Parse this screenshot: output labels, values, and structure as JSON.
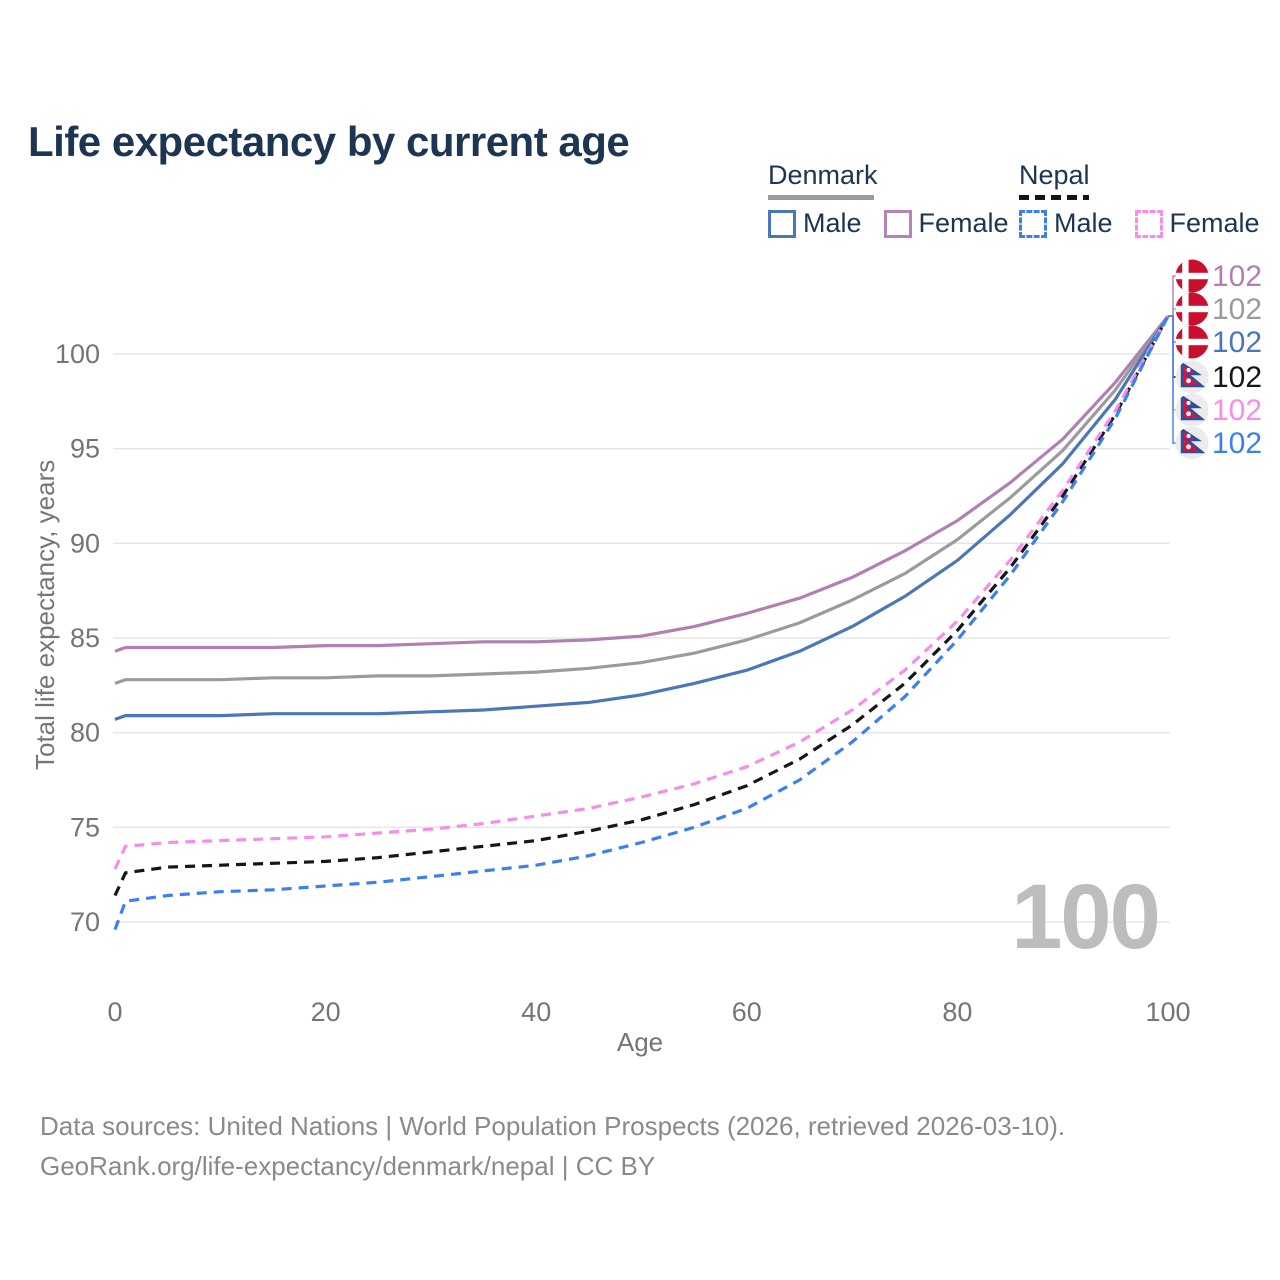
{
  "page": {
    "title": "Life expectancy by current age",
    "background": "#ffffff"
  },
  "legend": {
    "groups": [
      {
        "id": "denmark",
        "label": "Denmark",
        "line_style": "solid",
        "line_color": "#9b9b9b",
        "items": [
          {
            "id": "denmark-male",
            "label": "Male",
            "color": "#4a77b9",
            "dashed": false
          },
          {
            "id": "denmark-female",
            "label": "Female",
            "color": "#b583b5",
            "dashed": false
          }
        ]
      },
      {
        "id": "nepal",
        "label": "Nepal",
        "line_style": "dashed",
        "line_color": "#161616",
        "items": [
          {
            "id": "nepal-male",
            "label": "Male",
            "color": "#3b80f0",
            "dashed": true
          },
          {
            "id": "nepal-female",
            "label": "Female",
            "color": "#fa8ce8",
            "dashed": true
          }
        ]
      }
    ]
  },
  "chart_data": {
    "type": "line",
    "title": "Life expectancy by current age",
    "xlabel": "Age",
    "ylabel": "Total life expectancy, years",
    "xlim": [
      0,
      100
    ],
    "ylim": [
      69,
      103
    ],
    "x_ticks": [
      0,
      20,
      40,
      60,
      80,
      100
    ],
    "y_ticks": [
      70,
      75,
      80,
      85,
      90,
      95,
      100
    ],
    "grid": "horizontal",
    "legend_position": "top-right",
    "watermark": "100",
    "x": [
      0,
      1,
      5,
      10,
      15,
      20,
      25,
      30,
      35,
      40,
      45,
      50,
      55,
      60,
      65,
      70,
      75,
      80,
      85,
      90,
      95,
      100
    ],
    "series": [
      {
        "id": "denmark-female",
        "name": "Denmark Female",
        "country": "Denmark",
        "sex": "female",
        "color": "#b27fb2",
        "dashed": false,
        "end_label": "102",
        "values": [
          84.3,
          84.5,
          84.5,
          84.5,
          84.5,
          84.6,
          84.6,
          84.7,
          84.8,
          84.8,
          84.9,
          85.1,
          85.6,
          86.3,
          87.1,
          88.2,
          89.6,
          91.2,
          93.2,
          95.5,
          98.5,
          102
        ]
      },
      {
        "id": "denmark-all",
        "name": "Denmark",
        "country": "Denmark",
        "sex": "all",
        "color": "#9b9b9b",
        "dashed": false,
        "end_label": "102",
        "values": [
          82.6,
          82.8,
          82.8,
          82.8,
          82.9,
          82.9,
          83.0,
          83.0,
          83.1,
          83.2,
          83.4,
          83.7,
          84.2,
          84.9,
          85.8,
          87.0,
          88.4,
          90.2,
          92.4,
          94.9,
          98.1,
          102
        ]
      },
      {
        "id": "denmark-male",
        "name": "Denmark Male",
        "country": "Denmark",
        "sex": "male",
        "color": "#4a77b9",
        "dashed": false,
        "end_label": "102",
        "values": [
          80.7,
          80.9,
          80.9,
          80.9,
          81.0,
          81.0,
          81.0,
          81.1,
          81.2,
          81.4,
          81.6,
          82.0,
          82.6,
          83.3,
          84.3,
          85.6,
          87.2,
          89.1,
          91.5,
          94.2,
          97.6,
          102
        ]
      },
      {
        "id": "nepal-all",
        "name": "Nepal",
        "country": "Nepal",
        "sex": "all",
        "color": "#161616",
        "dashed": true,
        "end_label": "102",
        "values": [
          71.4,
          72.6,
          72.9,
          73.0,
          73.1,
          73.2,
          73.4,
          73.7,
          74.0,
          74.3,
          74.8,
          75.4,
          76.2,
          77.2,
          78.6,
          80.4,
          82.6,
          85.4,
          88.7,
          92.5,
          96.8,
          102
        ]
      },
      {
        "id": "nepal-female",
        "name": "Nepal Female",
        "country": "Nepal",
        "sex": "female",
        "color": "#fa8ce8",
        "dashed": true,
        "end_label": "102",
        "values": [
          72.8,
          74.0,
          74.2,
          74.3,
          74.4,
          74.5,
          74.7,
          74.9,
          75.2,
          75.6,
          76.0,
          76.6,
          77.3,
          78.2,
          79.5,
          81.2,
          83.3,
          85.9,
          89.1,
          92.8,
          97.0,
          102
        ]
      },
      {
        "id": "nepal-male",
        "name": "Nepal Male",
        "country": "Nepal",
        "sex": "male",
        "color": "#3b80f0",
        "dashed": true,
        "end_label": "102",
        "values": [
          69.6,
          71.1,
          71.4,
          71.6,
          71.7,
          71.9,
          72.1,
          72.4,
          72.7,
          73.0,
          73.5,
          74.2,
          75.0,
          76.0,
          77.5,
          79.5,
          81.9,
          84.9,
          88.3,
          92.2,
          96.6,
          102
        ]
      }
    ],
    "end_label_order": [
      "denmark-female",
      "denmark-all",
      "denmark-male",
      "nepal-all",
      "nepal-female",
      "nepal-male"
    ]
  },
  "footer": {
    "line1": "Data sources: United Nations | World Population Prospects (2026, retrieved 2026-03-10).",
    "line2": "GeoRank.org/life-expectancy/denmark/nepal | CC BY"
  },
  "colors": {
    "title_text": "#1c3552",
    "axis_text": "#757575",
    "gridline": "#e7e7e7",
    "watermark": "#bdbdbd",
    "denmark_flag_red": "#c8102e",
    "nepal_flag_crimson": "#dc143c",
    "nepal_flag_blue": "#2b50a0"
  }
}
